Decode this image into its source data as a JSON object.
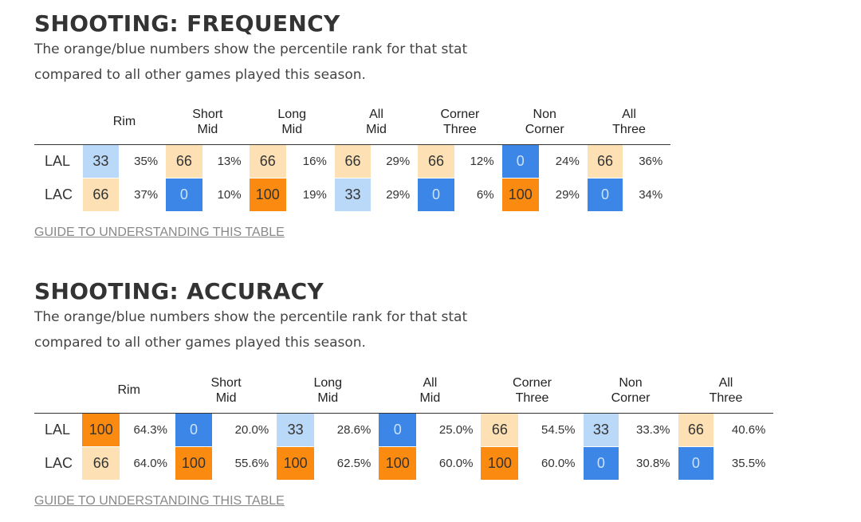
{
  "frequency": {
    "title": "SHOOTING: FREQUENCY",
    "desc_line1": "The orange/blue numbers show the percentile rank for that stat",
    "desc_line2": "compared to all other games played this season.",
    "guide_link": "GUIDE TO UNDERSTANDING THIS TABLE",
    "columns": [
      {
        "l1": "",
        "l2": "Rim"
      },
      {
        "l1": "Short",
        "l2": "Mid"
      },
      {
        "l1": "Long",
        "l2": "Mid"
      },
      {
        "l1": "All",
        "l2": "Mid"
      },
      {
        "l1": "Corner",
        "l2": "Three"
      },
      {
        "l1": "Non",
        "l2": "Corner"
      },
      {
        "l1": "All",
        "l2": "Three"
      }
    ],
    "rows": [
      {
        "team": "LAL",
        "cells": [
          {
            "pct": "33",
            "val": "35%",
            "color": "light-blue"
          },
          {
            "pct": "66",
            "val": "13%",
            "color": "light-orange"
          },
          {
            "pct": "66",
            "val": "16%",
            "color": "light-orange"
          },
          {
            "pct": "66",
            "val": "29%",
            "color": "light-orange"
          },
          {
            "pct": "66",
            "val": "12%",
            "color": "light-orange"
          },
          {
            "pct": "0",
            "val": "24%",
            "color": "blue"
          },
          {
            "pct": "66",
            "val": "36%",
            "color": "light-orange"
          }
        ]
      },
      {
        "team": "LAC",
        "cells": [
          {
            "pct": "66",
            "val": "37%",
            "color": "light-orange"
          },
          {
            "pct": "0",
            "val": "10%",
            "color": "blue"
          },
          {
            "pct": "100",
            "val": "19%",
            "color": "orange"
          },
          {
            "pct": "33",
            "val": "29%",
            "color": "light-blue"
          },
          {
            "pct": "0",
            "val": "6%",
            "color": "blue"
          },
          {
            "pct": "100",
            "val": "29%",
            "color": "orange"
          },
          {
            "pct": "0",
            "val": "34%",
            "color": "blue"
          }
        ]
      }
    ]
  },
  "accuracy": {
    "title": "SHOOTING: ACCURACY",
    "desc_line1": "The orange/blue numbers show the percentile rank for that stat",
    "desc_line2": "compared to all other games played this season.",
    "guide_link": "GUIDE TO UNDERSTANDING THIS TABLE",
    "columns": [
      {
        "l1": "",
        "l2": "Rim"
      },
      {
        "l1": "Short",
        "l2": "Mid"
      },
      {
        "l1": "Long",
        "l2": "Mid"
      },
      {
        "l1": "All",
        "l2": "Mid"
      },
      {
        "l1": "Corner",
        "l2": "Three"
      },
      {
        "l1": "Non",
        "l2": "Corner"
      },
      {
        "l1": "All",
        "l2": "Three"
      }
    ],
    "rows": [
      {
        "team": "LAL",
        "cells": [
          {
            "pct": "100",
            "val": "64.3%",
            "color": "orange"
          },
          {
            "pct": "0",
            "val": "20.0%",
            "color": "blue"
          },
          {
            "pct": "33",
            "val": "28.6%",
            "color": "light-blue"
          },
          {
            "pct": "0",
            "val": "25.0%",
            "color": "blue"
          },
          {
            "pct": "66",
            "val": "54.5%",
            "color": "light-orange"
          },
          {
            "pct": "33",
            "val": "33.3%",
            "color": "light-blue"
          },
          {
            "pct": "66",
            "val": "40.6%",
            "color": "light-orange"
          }
        ]
      },
      {
        "team": "LAC",
        "cells": [
          {
            "pct": "66",
            "val": "64.0%",
            "color": "light-orange"
          },
          {
            "pct": "100",
            "val": "55.6%",
            "color": "orange"
          },
          {
            "pct": "100",
            "val": "62.5%",
            "color": "orange"
          },
          {
            "pct": "100",
            "val": "60.0%",
            "color": "orange"
          },
          {
            "pct": "100",
            "val": "60.0%",
            "color": "orange"
          },
          {
            "pct": "0",
            "val": "30.8%",
            "color": "blue"
          },
          {
            "pct": "0",
            "val": "35.5%",
            "color": "blue"
          }
        ]
      }
    ]
  },
  "colors": {
    "light-blue": "#bad8f7",
    "blue": "#3b86e7",
    "light-orange": "#fde1b4",
    "orange": "#fb8b10"
  }
}
